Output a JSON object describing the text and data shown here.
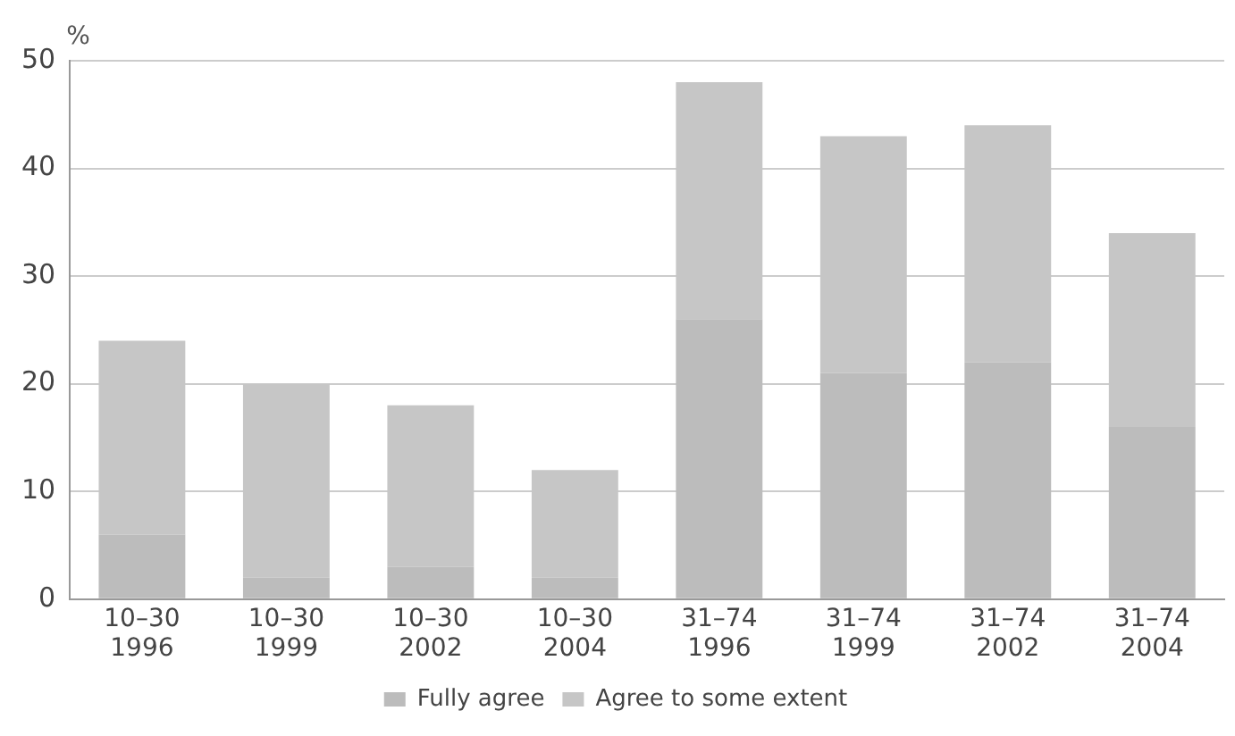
{
  "chart_data": {
    "type": "bar",
    "stacked": true,
    "ylabel": "%",
    "categories": [
      "10–30\n1996",
      "10–30\n1999",
      "10–30\n2002",
      "10–30\n2004",
      "31–74\n1996",
      "31–74\n1999",
      "31–74\n2002",
      "31–74\n2004"
    ],
    "series": [
      {
        "name": "Fully agree",
        "color": "#bcbcbc",
        "values": [
          6,
          2,
          3,
          2,
          26,
          21,
          22,
          16
        ]
      },
      {
        "name": "Agree to some extent",
        "color": "#c6c6c6",
        "values": [
          18,
          18,
          15,
          10,
          22,
          22,
          22,
          18
        ]
      }
    ],
    "ylim": [
      0,
      50
    ],
    "yticks": [
      0,
      10,
      20,
      30,
      40,
      50
    ],
    "grid": "y",
    "legend": "bottom"
  }
}
